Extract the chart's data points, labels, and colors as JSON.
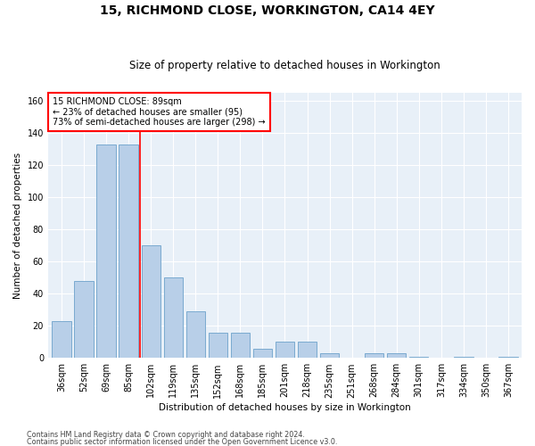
{
  "title": "15, RICHMOND CLOSE, WORKINGTON, CA14 4EY",
  "subtitle": "Size of property relative to detached houses in Workington",
  "xlabel": "Distribution of detached houses by size in Workington",
  "ylabel": "Number of detached properties",
  "categories": [
    "36sqm",
    "52sqm",
    "69sqm",
    "85sqm",
    "102sqm",
    "119sqm",
    "135sqm",
    "152sqm",
    "168sqm",
    "185sqm",
    "201sqm",
    "218sqm",
    "235sqm",
    "251sqm",
    "268sqm",
    "284sqm",
    "301sqm",
    "317sqm",
    "334sqm",
    "350sqm",
    "367sqm"
  ],
  "values": [
    23,
    48,
    133,
    133,
    70,
    50,
    29,
    16,
    16,
    6,
    10,
    10,
    3,
    0,
    3,
    3,
    1,
    0,
    1,
    0,
    1
  ],
  "bar_color": "#b8cfe8",
  "bar_edge_color": "#7aaad0",
  "vline_x": 3.5,
  "vline_color": "red",
  "annotation_text": "15 RICHMOND CLOSE: 89sqm\n← 23% of detached houses are smaller (95)\n73% of semi-detached houses are larger (298) →",
  "annotation_box_color": "white",
  "annotation_box_edgecolor": "red",
  "ylim": [
    0,
    165
  ],
  "yticks": [
    0,
    20,
    40,
    60,
    80,
    100,
    120,
    140,
    160
  ],
  "footer1": "Contains HM Land Registry data © Crown copyright and database right 2024.",
  "footer2": "Contains public sector information licensed under the Open Government Licence v3.0.",
  "bg_color": "#e8f0f8",
  "title_fontsize": 10,
  "subtitle_fontsize": 8.5,
  "annotation_fontsize": 7,
  "axis_label_fontsize": 7.5,
  "tick_fontsize": 7,
  "ylabel_fontsize": 7.5,
  "footer_fontsize": 5.8
}
